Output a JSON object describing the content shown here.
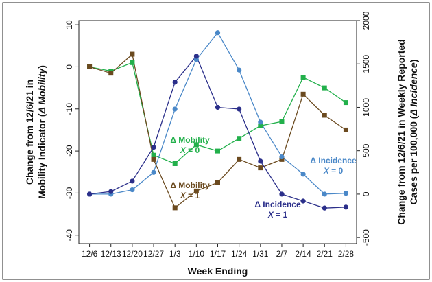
{
  "chart_data": {
    "type": "line",
    "categories": [
      "12/6",
      "12/13",
      "12/20",
      "12/27",
      "1/3",
      "1/10",
      "1/17",
      "1/24",
      "1/31",
      "2/7",
      "2/14",
      "2/21",
      "2/28"
    ],
    "xlabel": "Week Ending",
    "ylabel_left_line1": "Change from 12/6/21 in",
    "ylabel_left_line2_prefix": "Mobility Indicator (",
    "ylabel_left_line2_italic": "Δ Mobility",
    "ylabel_left_line2_suffix": ")",
    "ylabel_right_line1": "Change from 12/6/21 in Weekly Reported",
    "ylabel_right_line2_prefix": "Cases per 100,000 (",
    "ylabel_right_line2_italic": "Δ Incidence",
    "ylabel_right_line2_suffix": ")",
    "ylim_left": [
      -42,
      11
    ],
    "yticks_left": [
      10,
      0,
      -10,
      -20,
      -30,
      -40
    ],
    "ylim_right": [
      -570,
      2000
    ],
    "yticks_right": [
      2000,
      1500,
      1000,
      500,
      0,
      -500
    ],
    "grid": false,
    "series": [
      {
        "name": "Δ Mobility X = 0",
        "axis": "left",
        "marker": "square",
        "color": "#22b04b",
        "values": [
          0,
          -1,
          1,
          -21,
          -23,
          -18.5,
          -20,
          -17,
          -14,
          -13,
          -2.5,
          -5,
          -8.5
        ]
      },
      {
        "name": "Δ Mobility X = 1",
        "axis": "left",
        "marker": "square",
        "color": "#6b4a1f",
        "values": [
          0,
          -1.5,
          3,
          -22,
          -33.5,
          -29.5,
          -27.5,
          -22,
          -24,
          -22,
          -6.5,
          -11.5,
          -15
        ]
      },
      {
        "name": "Δ Incidence X = 0",
        "axis": "right",
        "marker": "circle",
        "color": "#4a88c8",
        "values": [
          0,
          0,
          50,
          250,
          980,
          1550,
          1860,
          1430,
          830,
          430,
          230,
          0,
          10
        ]
      },
      {
        "name": "Δ Incidence X = 1",
        "axis": "right",
        "marker": "circle",
        "color": "#2b2f8a",
        "values": [
          0,
          30,
          150,
          540,
          1290,
          1590,
          1000,
          980,
          380,
          0,
          -80,
          -160,
          -150
        ]
      }
    ],
    "annotations": [
      {
        "line1": "Δ Mobility",
        "line2_var": "X",
        "line2_val": " = 0",
        "color": "#22b04b"
      },
      {
        "line1": "Δ Mobility",
        "line2_var": "X",
        "line2_val": " = 1",
        "color": "#6b4a1f"
      },
      {
        "line1": "Δ Incidence",
        "line2_var": "X",
        "line2_val": " = 0",
        "color": "#4a88c8"
      },
      {
        "line1": "Δ Incidence",
        "line2_var": "X",
        "line2_val": " = 1",
        "color": "#2b2f8a"
      }
    ]
  }
}
